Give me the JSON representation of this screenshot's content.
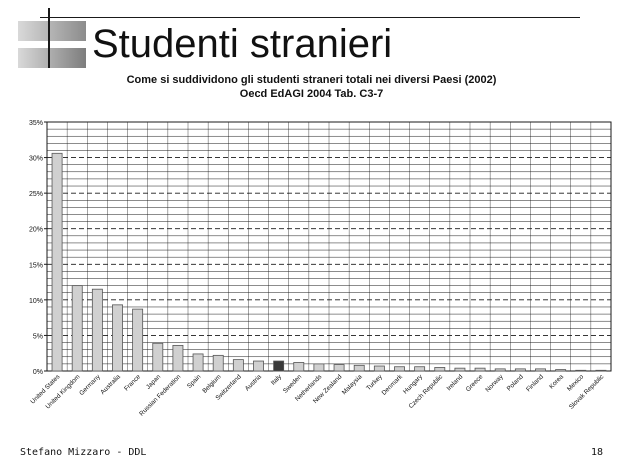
{
  "slide": {
    "title": "Studenti stranieri",
    "footer_left": "Stefano Mizzaro - DDL",
    "footer_right": "18"
  },
  "chart_data": {
    "type": "bar",
    "title": "Come si suddividono gli studenti straneri totali nei diversi Paesi (2002)",
    "subtitle": "Oecd EdAGI 2004 Tab. C3-7",
    "xlabel": "",
    "ylabel": "",
    "ylim": [
      0,
      35
    ],
    "yticks": [
      "0%",
      "5%",
      "10%",
      "15%",
      "20%",
      "25%",
      "30%",
      "35%"
    ],
    "grid": true,
    "legend": "none",
    "categories": [
      "United States",
      "United Kingdom",
      "Germany",
      "Australia",
      "France",
      "Japan",
      "Russian Federation",
      "Spain",
      "Belgium",
      "Switzerland",
      "Austria",
      "Italy",
      "Sweden",
      "Netherlands",
      "New Zealand",
      "Malaysia",
      "Turkey",
      "Denmark",
      "Hungary",
      "Czech Republic",
      "Ireland",
      "Greece",
      "Norway",
      "Poland",
      "Finland",
      "Korea",
      "Mexico",
      "Slovak Republic"
    ],
    "values": [
      30.6,
      12.0,
      11.5,
      9.3,
      8.7,
      3.9,
      3.6,
      2.4,
      2.2,
      1.6,
      1.4,
      1.4,
      1.2,
      1.0,
      0.9,
      0.8,
      0.7,
      0.6,
      0.6,
      0.5,
      0.4,
      0.4,
      0.3,
      0.3,
      0.3,
      0.2,
      0.1,
      0.1
    ],
    "highlight": "Italy",
    "colors": {
      "bar": "#d0d0d0",
      "highlight": "#3a3a3a",
      "outline": "#555555",
      "grid": "#1a1a1a"
    }
  }
}
